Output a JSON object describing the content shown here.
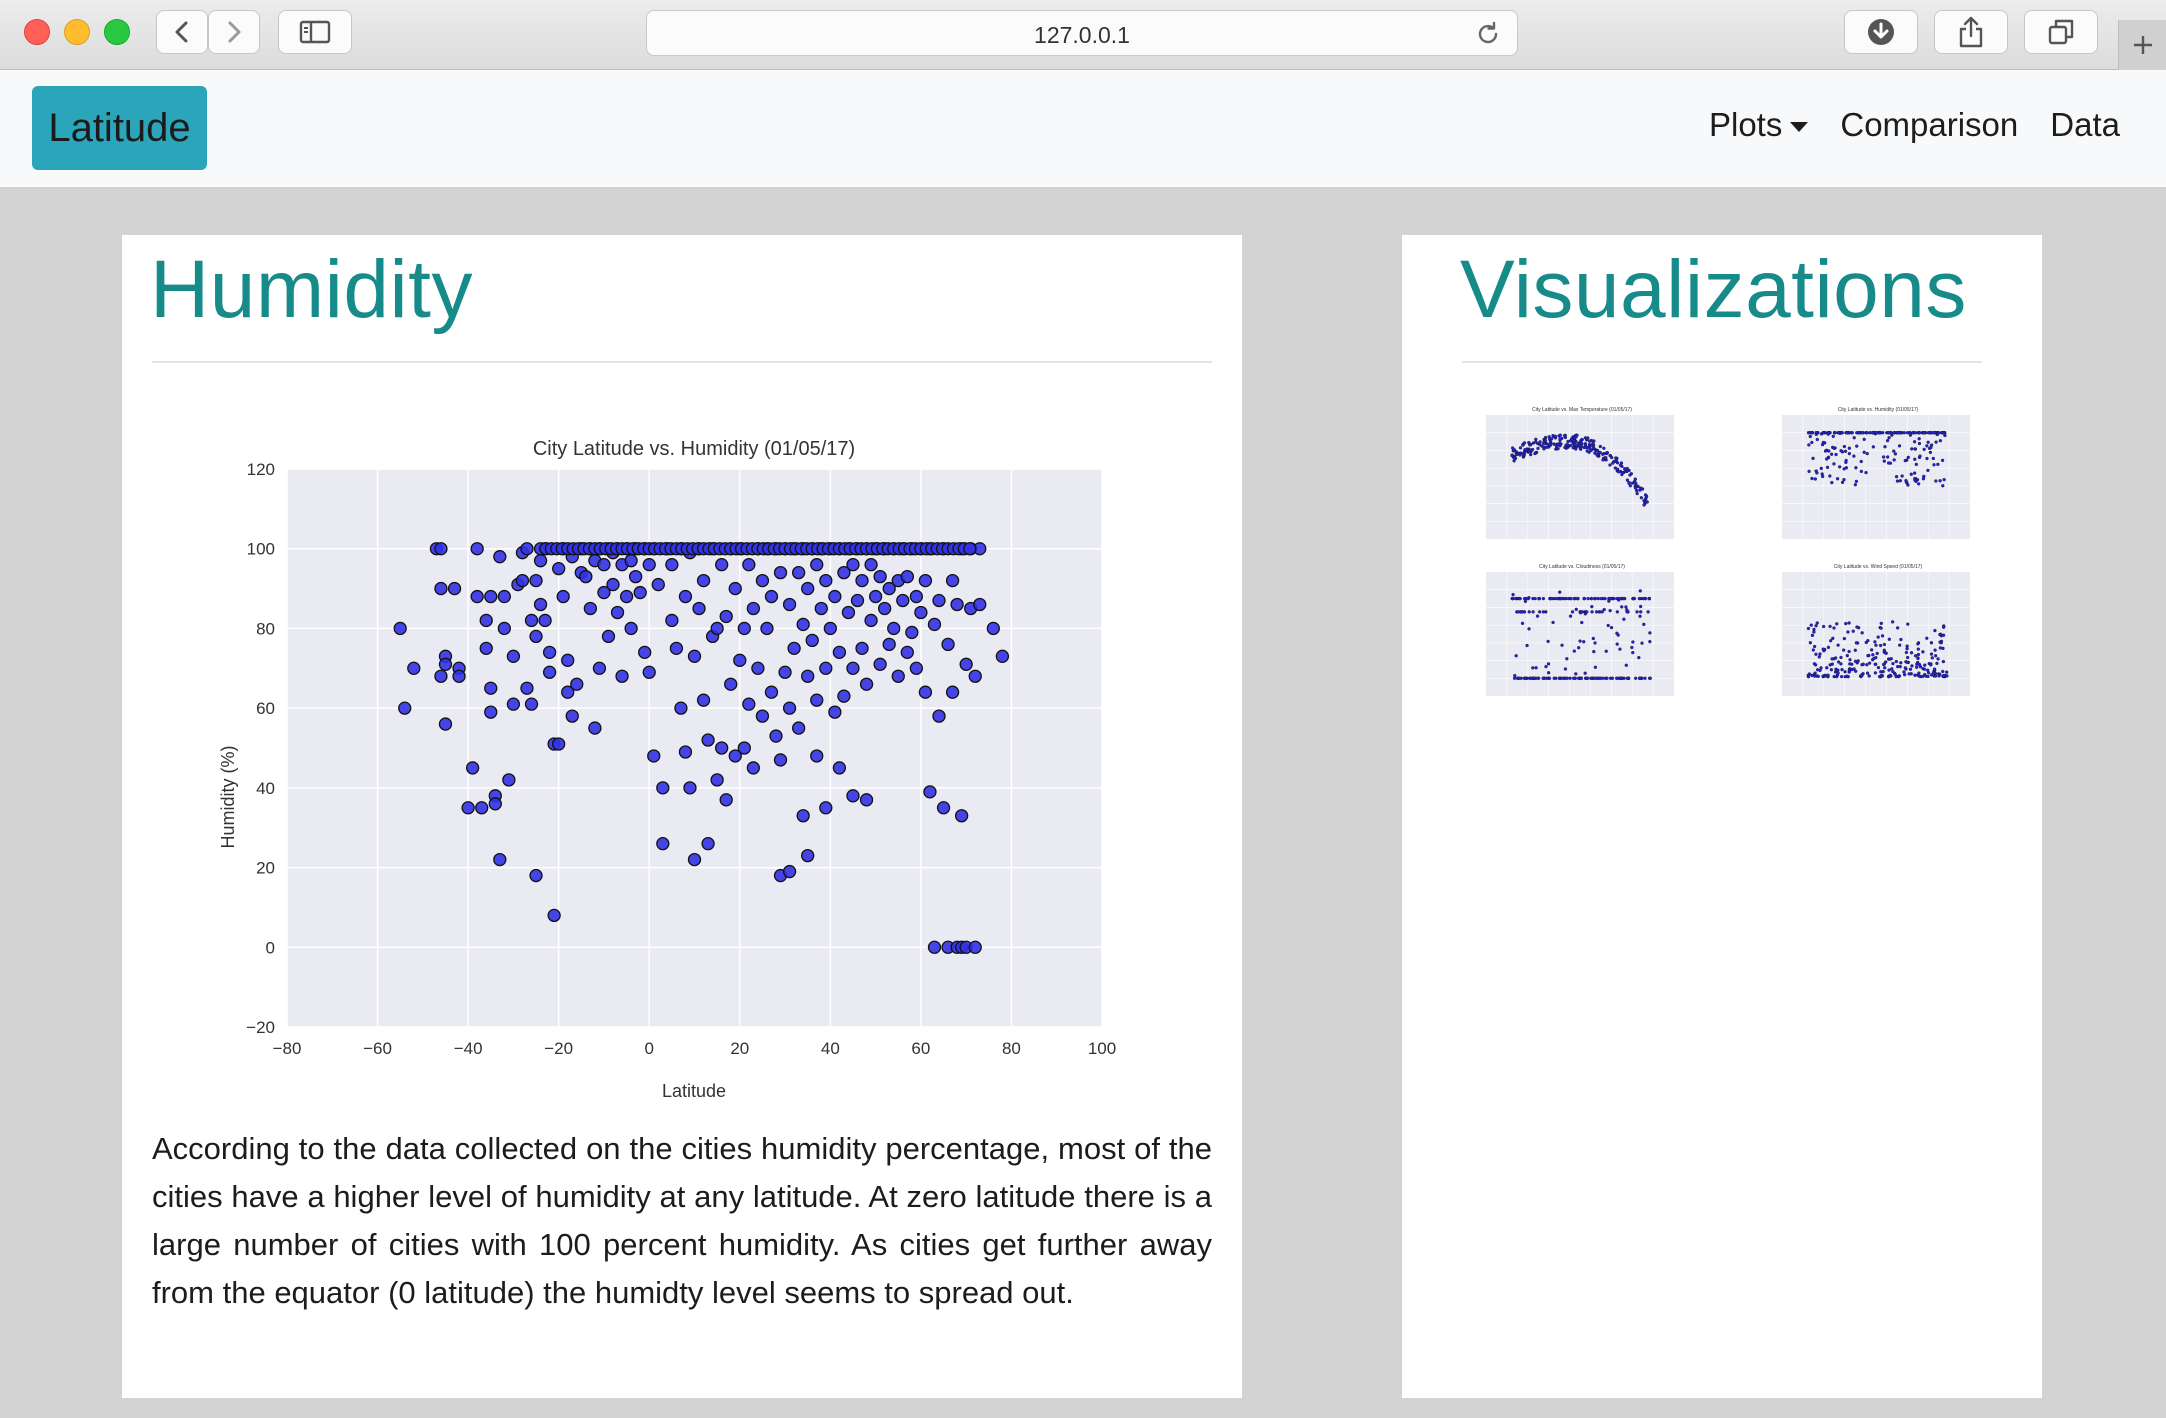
{
  "browser": {
    "url": "127.0.0.1"
  },
  "navbar": {
    "brand": "Latitude",
    "items": [
      {
        "label": "Plots",
        "has_dropdown": true
      },
      {
        "label": "Comparison"
      },
      {
        "label": "Data"
      }
    ]
  },
  "main": {
    "title": "Humidity",
    "description": "According to the data collected on the cities humidity percentage, most of the cities have a higher level of humidity at any latitude. At zero latitude there is a large number of cities with 100 percent humidity. As cities get further away from the equator (0 latitude) the humidty level seems to spread out."
  },
  "sidebar": {
    "title": "Visualizations",
    "thumbnails": [
      {
        "title": "City Latitude vs. Max Temperature (01/05/17)"
      },
      {
        "title": "City Latitude vs. Humidity (01/05/17)"
      },
      {
        "title": "City Latitude vs. Cloudiness (01/05/17)"
      },
      {
        "title": "City Latitude vs. Wind Speed (01/05/17)"
      }
    ]
  },
  "colors": {
    "accent": "#178a8a",
    "brand_button": "#2aa5ba",
    "point_fill": "#3232e6",
    "plot_bg": "#eaeaf2"
  },
  "chart_data": {
    "type": "scatter",
    "title": "City Latitude vs. Humidity (01/05/17)",
    "xlabel": "Latitude",
    "ylabel": "Humidity (%)",
    "xlim": [
      -80,
      100
    ],
    "ylim": [
      -20,
      120
    ],
    "xticks": [
      -80,
      -60,
      -40,
      -20,
      0,
      20,
      40,
      60,
      80,
      100
    ],
    "yticks": [
      -20,
      0,
      20,
      40,
      60,
      80,
      100,
      120
    ],
    "grid": true,
    "points": [
      [
        -55,
        80
      ],
      [
        -54,
        60
      ],
      [
        -52,
        70
      ],
      [
        -47,
        100
      ],
      [
        -46,
        100
      ],
      [
        -46,
        90
      ],
      [
        -45,
        73
      ],
      [
        -45,
        71
      ],
      [
        -46,
        68
      ],
      [
        -45,
        56
      ],
      [
        -43,
        90
      ],
      [
        -42,
        70
      ],
      [
        -42,
        68
      ],
      [
        -40,
        35
      ],
      [
        -39,
        45
      ],
      [
        -38,
        100
      ],
      [
        -38,
        88
      ],
      [
        -37,
        35
      ],
      [
        -36,
        82
      ],
      [
        -36,
        75
      ],
      [
        -35,
        65
      ],
      [
        -35,
        59
      ],
      [
        -35,
        88
      ],
      [
        -34,
        38
      ],
      [
        -34,
        36
      ],
      [
        -33,
        22
      ],
      [
        -33,
        98
      ],
      [
        -32,
        88
      ],
      [
        -32,
        80
      ],
      [
        -31,
        42
      ],
      [
        -30,
        61
      ],
      [
        -30,
        73
      ],
      [
        -29,
        91
      ],
      [
        -28,
        99
      ],
      [
        -28,
        92
      ],
      [
        -27,
        100
      ],
      [
        -27,
        65
      ],
      [
        -26,
        61
      ],
      [
        -26,
        82
      ],
      [
        -25,
        92
      ],
      [
        -25,
        78
      ],
      [
        -25,
        18
      ],
      [
        -24,
        97
      ],
      [
        -24,
        86
      ],
      [
        -23,
        100
      ],
      [
        -23,
        82
      ],
      [
        -22,
        74
      ],
      [
        -22,
        69
      ],
      [
        -21,
        51
      ],
      [
        -21,
        8
      ],
      [
        -20,
        51
      ],
      [
        -20,
        95
      ],
      [
        -19,
        100
      ],
      [
        -19,
        88
      ],
      [
        -18,
        72
      ],
      [
        -18,
        64
      ],
      [
        -17,
        98
      ],
      [
        -17,
        58
      ],
      [
        -16,
        66
      ],
      [
        -15,
        100
      ],
      [
        -15,
        94
      ],
      [
        -14,
        93
      ],
      [
        -13,
        100
      ],
      [
        -13,
        85
      ],
      [
        -12,
        97
      ],
      [
        -12,
        55
      ],
      [
        -11,
        100
      ],
      [
        -11,
        70
      ],
      [
        -10,
        96
      ],
      [
        -10,
        89
      ],
      [
        -9,
        100
      ],
      [
        -9,
        78
      ],
      [
        -8,
        99
      ],
      [
        -8,
        91
      ],
      [
        -7,
        100
      ],
      [
        -7,
        84
      ],
      [
        -6,
        96
      ],
      [
        -6,
        68
      ],
      [
        -5,
        100
      ],
      [
        -5,
        88
      ],
      [
        -4,
        97
      ],
      [
        -4,
        80
      ],
      [
        -3,
        100
      ],
      [
        -3,
        93
      ],
      [
        -2,
        89
      ],
      [
        -1,
        100
      ],
      [
        -1,
        74
      ],
      [
        0,
        96
      ],
      [
        0,
        69
      ],
      [
        1,
        100
      ],
      [
        1,
        48
      ],
      [
        2,
        91
      ],
      [
        3,
        40
      ],
      [
        3,
        26
      ],
      [
        4,
        100
      ],
      [
        5,
        96
      ],
      [
        5,
        82
      ],
      [
        6,
        75
      ],
      [
        7,
        100
      ],
      [
        7,
        60
      ],
      [
        8,
        49
      ],
      [
        8,
        88
      ],
      [
        9,
        99
      ],
      [
        9,
        40
      ],
      [
        10,
        73
      ],
      [
        10,
        22
      ],
      [
        11,
        100
      ],
      [
        11,
        85
      ],
      [
        12,
        92
      ],
      [
        12,
        62
      ],
      [
        13,
        26
      ],
      [
        13,
        52
      ],
      [
        14,
        100
      ],
      [
        14,
        78
      ],
      [
        15,
        80
      ],
      [
        15,
        42
      ],
      [
        16,
        96
      ],
      [
        16,
        50
      ],
      [
        17,
        37
      ],
      [
        17,
        83
      ],
      [
        18,
        100
      ],
      [
        18,
        66
      ],
      [
        19,
        90
      ],
      [
        19,
        48
      ],
      [
        20,
        100
      ],
      [
        20,
        72
      ],
      [
        21,
        80
      ],
      [
        21,
        50
      ],
      [
        22,
        96
      ],
      [
        22,
        61
      ],
      [
        23,
        45
      ],
      [
        23,
        85
      ],
      [
        24,
        100
      ],
      [
        24,
        70
      ],
      [
        25,
        92
      ],
      [
        25,
        58
      ],
      [
        26,
        100
      ],
      [
        26,
        80
      ],
      [
        27,
        88
      ],
      [
        27,
        64
      ],
      [
        28,
        100
      ],
      [
        28,
        53
      ],
      [
        29,
        94
      ],
      [
        29,
        47
      ],
      [
        29,
        18
      ],
      [
        30,
        100
      ],
      [
        30,
        69
      ],
      [
        31,
        86
      ],
      [
        31,
        60
      ],
      [
        31,
        19
      ],
      [
        32,
        100
      ],
      [
        32,
        75
      ],
      [
        33,
        94
      ],
      [
        33,
        55
      ],
      [
        34,
        100
      ],
      [
        34,
        81
      ],
      [
        34,
        33
      ],
      [
        35,
        90
      ],
      [
        35,
        68
      ],
      [
        35,
        23
      ],
      [
        36,
        100
      ],
      [
        36,
        77
      ],
      [
        37,
        96
      ],
      [
        37,
        62
      ],
      [
        37,
        48
      ],
      [
        38,
        100
      ],
      [
        38,
        85
      ],
      [
        39,
        92
      ],
      [
        39,
        70
      ],
      [
        39,
        35
      ],
      [
        40,
        100
      ],
      [
        40,
        80
      ],
      [
        41,
        88
      ],
      [
        41,
        59
      ],
      [
        42,
        100
      ],
      [
        42,
        74
      ],
      [
        42,
        45
      ],
      [
        43,
        94
      ],
      [
        43,
        63
      ],
      [
        44,
        100
      ],
      [
        44,
        84
      ],
      [
        45,
        96
      ],
      [
        45,
        70
      ],
      [
        45,
        38
      ],
      [
        46,
        100
      ],
      [
        46,
        87
      ],
      [
        47,
        92
      ],
      [
        47,
        75
      ],
      [
        48,
        100
      ],
      [
        48,
        66
      ],
      [
        48,
        37
      ],
      [
        49,
        96
      ],
      [
        49,
        82
      ],
      [
        50,
        100
      ],
      [
        50,
        88
      ],
      [
        51,
        93
      ],
      [
        51,
        71
      ],
      [
        52,
        100
      ],
      [
        52,
        85
      ],
      [
        53,
        90
      ],
      [
        53,
        76
      ],
      [
        54,
        100
      ],
      [
        54,
        80
      ],
      [
        55,
        92
      ],
      [
        55,
        68
      ],
      [
        56,
        100
      ],
      [
        56,
        87
      ],
      [
        57,
        93
      ],
      [
        57,
        74
      ],
      [
        58,
        100
      ],
      [
        58,
        79
      ],
      [
        59,
        88
      ],
      [
        59,
        70
      ],
      [
        60,
        100
      ],
      [
        60,
        84
      ],
      [
        61,
        92
      ],
      [
        61,
        64
      ],
      [
        62,
        39
      ],
      [
        62,
        100
      ],
      [
        63,
        0
      ],
      [
        63,
        81
      ],
      [
        64,
        87
      ],
      [
        64,
        58
      ],
      [
        65,
        100
      ],
      [
        65,
        35
      ],
      [
        66,
        76
      ],
      [
        66,
        0
      ],
      [
        67,
        92
      ],
      [
        67,
        64
      ],
      [
        68,
        0
      ],
      [
        68,
        86
      ],
      [
        69,
        100
      ],
      [
        69,
        33
      ],
      [
        69,
        0
      ],
      [
        70,
        71
      ],
      [
        70,
        0
      ],
      [
        71,
        100
      ],
      [
        71,
        85
      ],
      [
        72,
        0
      ],
      [
        72,
        68
      ],
      [
        73,
        86
      ],
      [
        73,
        100
      ],
      [
        76,
        80
      ],
      [
        78,
        73
      ]
    ]
  }
}
